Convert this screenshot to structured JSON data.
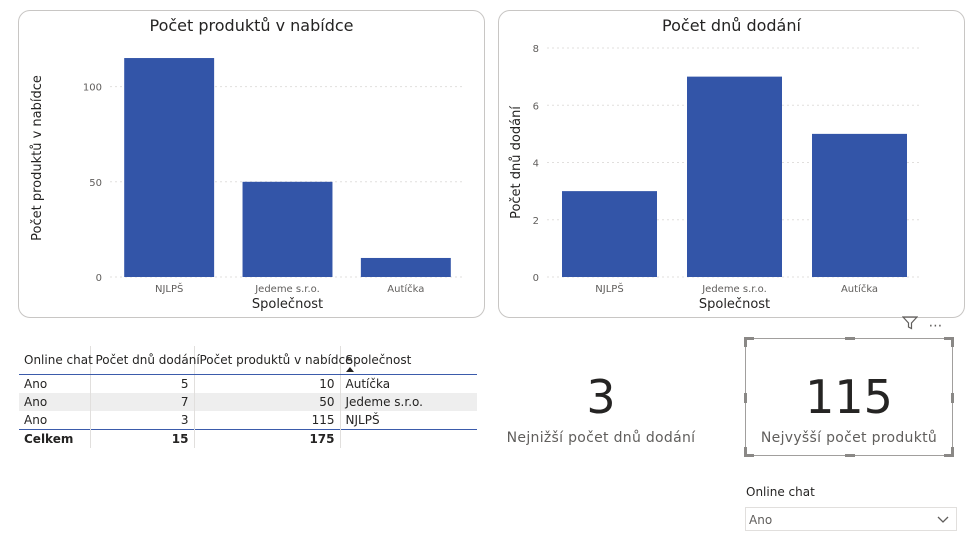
{
  "chart_data": [
    {
      "type": "bar",
      "title": "Počet produktů v nabídce",
      "xlabel": "Společnost",
      "ylabel": "Počet produktů v nabídce",
      "categories": [
        "NJLPŠ",
        "Jedeme s.r.o.",
        "Autíčka"
      ],
      "values": [
        115,
        50,
        10
      ],
      "ylim": [
        0,
        125
      ],
      "yticks": [
        0,
        50,
        100
      ],
      "color": "#3355a8",
      "grid": true
    },
    {
      "type": "bar",
      "title": "Počet dnů dodání",
      "xlabel": "Společnost",
      "ylabel": "Počet dnů dodání",
      "categories": [
        "NJLPŠ",
        "Jedeme s.r.o.",
        "Autíčka"
      ],
      "values": [
        3,
        7,
        5
      ],
      "ylim": [
        0,
        8
      ],
      "yticks": [
        0,
        2,
        4,
        6,
        8
      ],
      "color": "#3355a8",
      "grid": true
    }
  ],
  "table": {
    "headers": [
      "Online chat",
      "Počet dnů dodání",
      "Počet produktů v nabídce",
      "Společnost"
    ],
    "rows": [
      [
        "Ano",
        "5",
        "10",
        "Autíčka"
      ],
      [
        "Ano",
        "7",
        "50",
        "Jedeme s.r.o."
      ],
      [
        "Ano",
        "3",
        "115",
        "NJLPŠ"
      ]
    ],
    "total": [
      "Celkem",
      "15",
      "175",
      ""
    ]
  },
  "kpi_min": {
    "value": "3",
    "label": "Nejnižší počet dnů dodání"
  },
  "kpi_max": {
    "value": "115",
    "label": "Nejvyšší počet produktů"
  },
  "toolbar": {
    "filter_icon": "filter-icon",
    "more_icon": "more-options-icon",
    "more_glyph": "⋯"
  },
  "slicer": {
    "title": "Online chat",
    "selected": "Ano"
  }
}
